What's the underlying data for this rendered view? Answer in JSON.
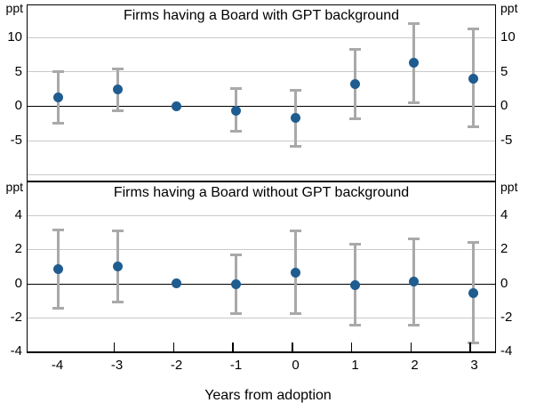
{
  "figure": {
    "xlabel": "Years from adoption",
    "x_tick_labels": [
      "-4",
      "-3",
      "-2",
      "-1",
      "0",
      "1",
      "2",
      "3"
    ]
  },
  "colors": {
    "dot": "#1f5c8f",
    "whisker": "#a9a9a9",
    "gridline": "#c9c9c9",
    "zero_line": "#000000",
    "text": "#000000",
    "background": "#ffffff"
  },
  "chart_data": [
    {
      "type": "scatter",
      "title": "Firms having a Board with GPT background",
      "unit": "ppt",
      "x": [
        -4,
        -3,
        -2,
        -1,
        0,
        1,
        2,
        3
      ],
      "series": [
        {
          "name": "point-estimate",
          "values": [
            1.2,
            2.4,
            -0.1,
            -0.7,
            -1.8,
            3.1,
            6.3,
            4.0
          ]
        },
        {
          "name": "ci-upper",
          "values": [
            5.0,
            5.3,
            null,
            2.5,
            2.3,
            8.2,
            12.0,
            11.2
          ]
        },
        {
          "name": "ci-lower",
          "values": [
            -2.5,
            -0.7,
            null,
            -3.7,
            -5.9,
            -1.9,
            0.4,
            -3.1
          ]
        }
      ],
      "ytick_labels": [
        10,
        5,
        0,
        -5
      ],
      "gridline_values": [
        10,
        5,
        -5,
        -10
      ],
      "ylim": [
        -10.8,
        14.6
      ],
      "grid": true,
      "legend": "none"
    },
    {
      "type": "scatter",
      "title": "Firms having a Board without GPT background",
      "unit": "ppt",
      "x": [
        -4,
        -3,
        -2,
        -1,
        0,
        1,
        2,
        3
      ],
      "series": [
        {
          "name": "point-estimate",
          "values": [
            0.85,
            1.0,
            0.0,
            -0.05,
            0.65,
            -0.1,
            0.1,
            -0.55
          ]
        },
        {
          "name": "ci-upper",
          "values": [
            3.15,
            3.1,
            null,
            1.7,
            3.1,
            2.3,
            2.65,
            2.4
          ]
        },
        {
          "name": "ci-lower",
          "values": [
            -1.45,
            -1.1,
            null,
            -1.8,
            -1.8,
            -2.45,
            -2.45,
            -3.5
          ]
        }
      ],
      "ytick_labels": [
        4,
        2,
        0,
        -2,
        -4
      ],
      "gridline_values": [
        4,
        2,
        -2
      ],
      "ylim": [
        -4.0,
        5.95
      ],
      "grid": true,
      "legend": "none"
    }
  ]
}
